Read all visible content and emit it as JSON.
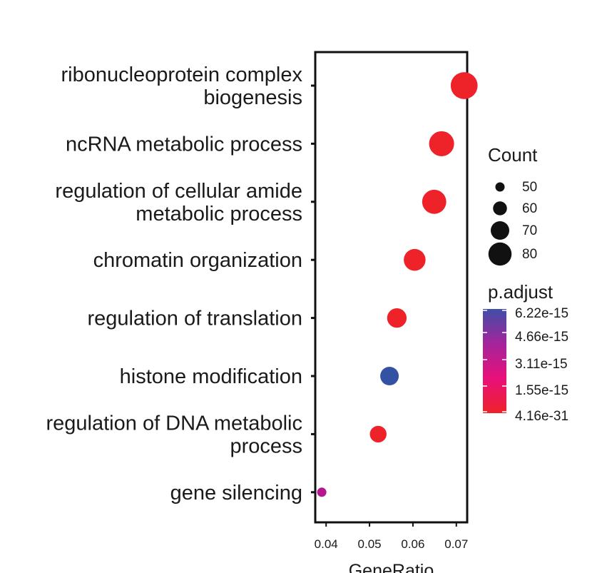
{
  "chart_data": {
    "type": "scatter",
    "title": "",
    "xlabel": "GeneRatio",
    "ylabel": "",
    "xlim": [
      0.0375,
      0.0725
    ],
    "xticks": [
      "0.04",
      "0.05",
      "0.06",
      "0.07"
    ],
    "xtick_values": [
      0.04,
      0.05,
      0.06,
      0.07
    ],
    "grid": false,
    "legend_position": "right",
    "categories": [
      [
        "ribonucleoprotein complex",
        "biogenesis"
      ],
      [
        "ncRNA metabolic process"
      ],
      [
        "regulation of cellular amide",
        "metabolic process"
      ],
      [
        "chromatin organization"
      ],
      [
        "regulation of translation"
      ],
      [
        "histone modification"
      ],
      [
        "regulation of DNA metabolic",
        "process"
      ],
      [
        "gene silencing"
      ]
    ],
    "points": [
      {
        "gene_ratio": 0.0718,
        "count": 88,
        "p_adjust": "4.16e-31",
        "color": "#ee2229"
      },
      {
        "gene_ratio": 0.0666,
        "count": 84,
        "p_adjust": "4.16e-31",
        "color": "#ee2229"
      },
      {
        "gene_ratio": 0.0649,
        "count": 82,
        "p_adjust": "4.16e-31",
        "color": "#ee2229"
      },
      {
        "gene_ratio": 0.0604,
        "count": 77,
        "p_adjust": "4.16e-31",
        "color": "#ee2229"
      },
      {
        "gene_ratio": 0.0563,
        "count": 72,
        "p_adjust": "4.16e-31",
        "color": "#ee2229"
      },
      {
        "gene_ratio": 0.0546,
        "count": 70,
        "p_adjust": "6.22e-15",
        "color": "#3452a3"
      },
      {
        "gene_ratio": 0.052,
        "count": 66,
        "p_adjust": "4.16e-31",
        "color": "#ee2229"
      },
      {
        "gene_ratio": 0.039,
        "count": 50,
        "p_adjust": "3.11e-15",
        "color": "#b5178f"
      }
    ],
    "legend_count": {
      "title": "Count",
      "values": [
        50,
        60,
        70,
        80
      ],
      "labels": [
        "50",
        "60",
        "70",
        "80"
      ]
    },
    "legend_color": {
      "title": "p.adjust",
      "labels": [
        "6.22e-15",
        "4.66e-15",
        "3.11e-15",
        "1.55e-15",
        "4.16e-31"
      ],
      "gradient": [
        "#3f4fa8",
        "#a4249b",
        "#e8107a",
        "#ee2229"
      ]
    }
  }
}
